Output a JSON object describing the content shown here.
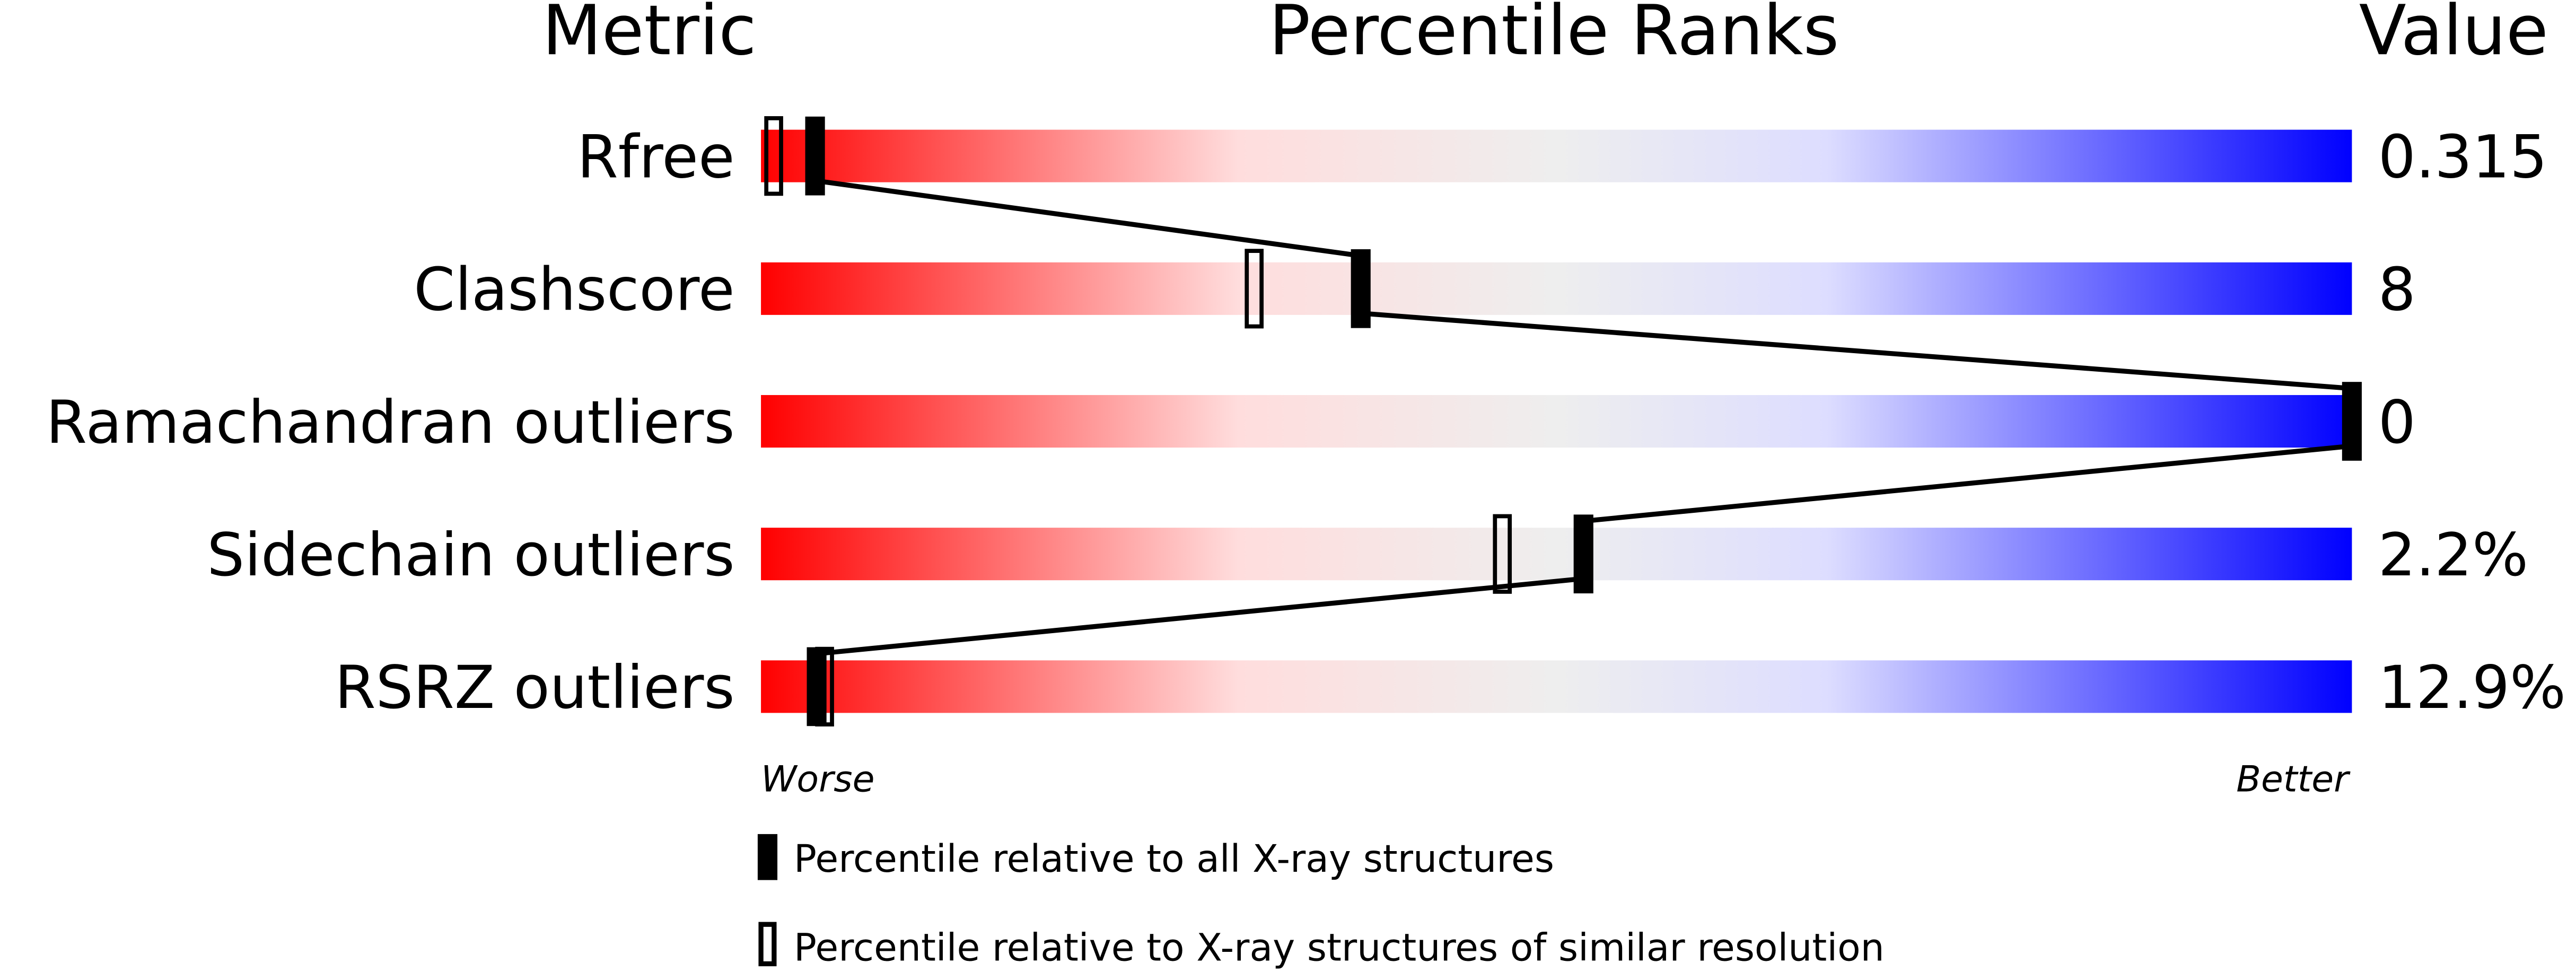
{
  "chart_data": {
    "type": "percentile-slider",
    "headers": {
      "metric": "Metric",
      "percentile": "Percentile Ranks",
      "value": "Value"
    },
    "axis": {
      "min_label": "Worse",
      "max_label": "Better",
      "range": [
        0,
        100
      ]
    },
    "gradient_colors": [
      "#ff0000",
      "#ffdddd",
      "#eeeeee",
      "#ddddff",
      "#0000ff"
    ],
    "rows": [
      {
        "metric": "Rfree",
        "value": "0.315",
        "percentile_all": 3.4,
        "percentile_similar": 0.8
      },
      {
        "metric": "Clashscore",
        "value": "8",
        "percentile_all": 37.7,
        "percentile_similar": 31
      },
      {
        "metric": "Ramachandran outliers",
        "value": "0",
        "percentile_all": 100,
        "percentile_similar": null
      },
      {
        "metric": "Sidechain outliers",
        "value": "2.2%",
        "percentile_all": 51.7,
        "percentile_similar": 46.6
      },
      {
        "metric": "RSRZ outliers",
        "value": "12.9%",
        "percentile_all": 3.5,
        "percentile_similar": 4.0
      }
    ],
    "legend": [
      {
        "label": "Percentile relative to all X-ray structures",
        "marker": "filled"
      },
      {
        "label": "Percentile relative to X-ray structures of similar resolution",
        "marker": "open"
      }
    ]
  }
}
